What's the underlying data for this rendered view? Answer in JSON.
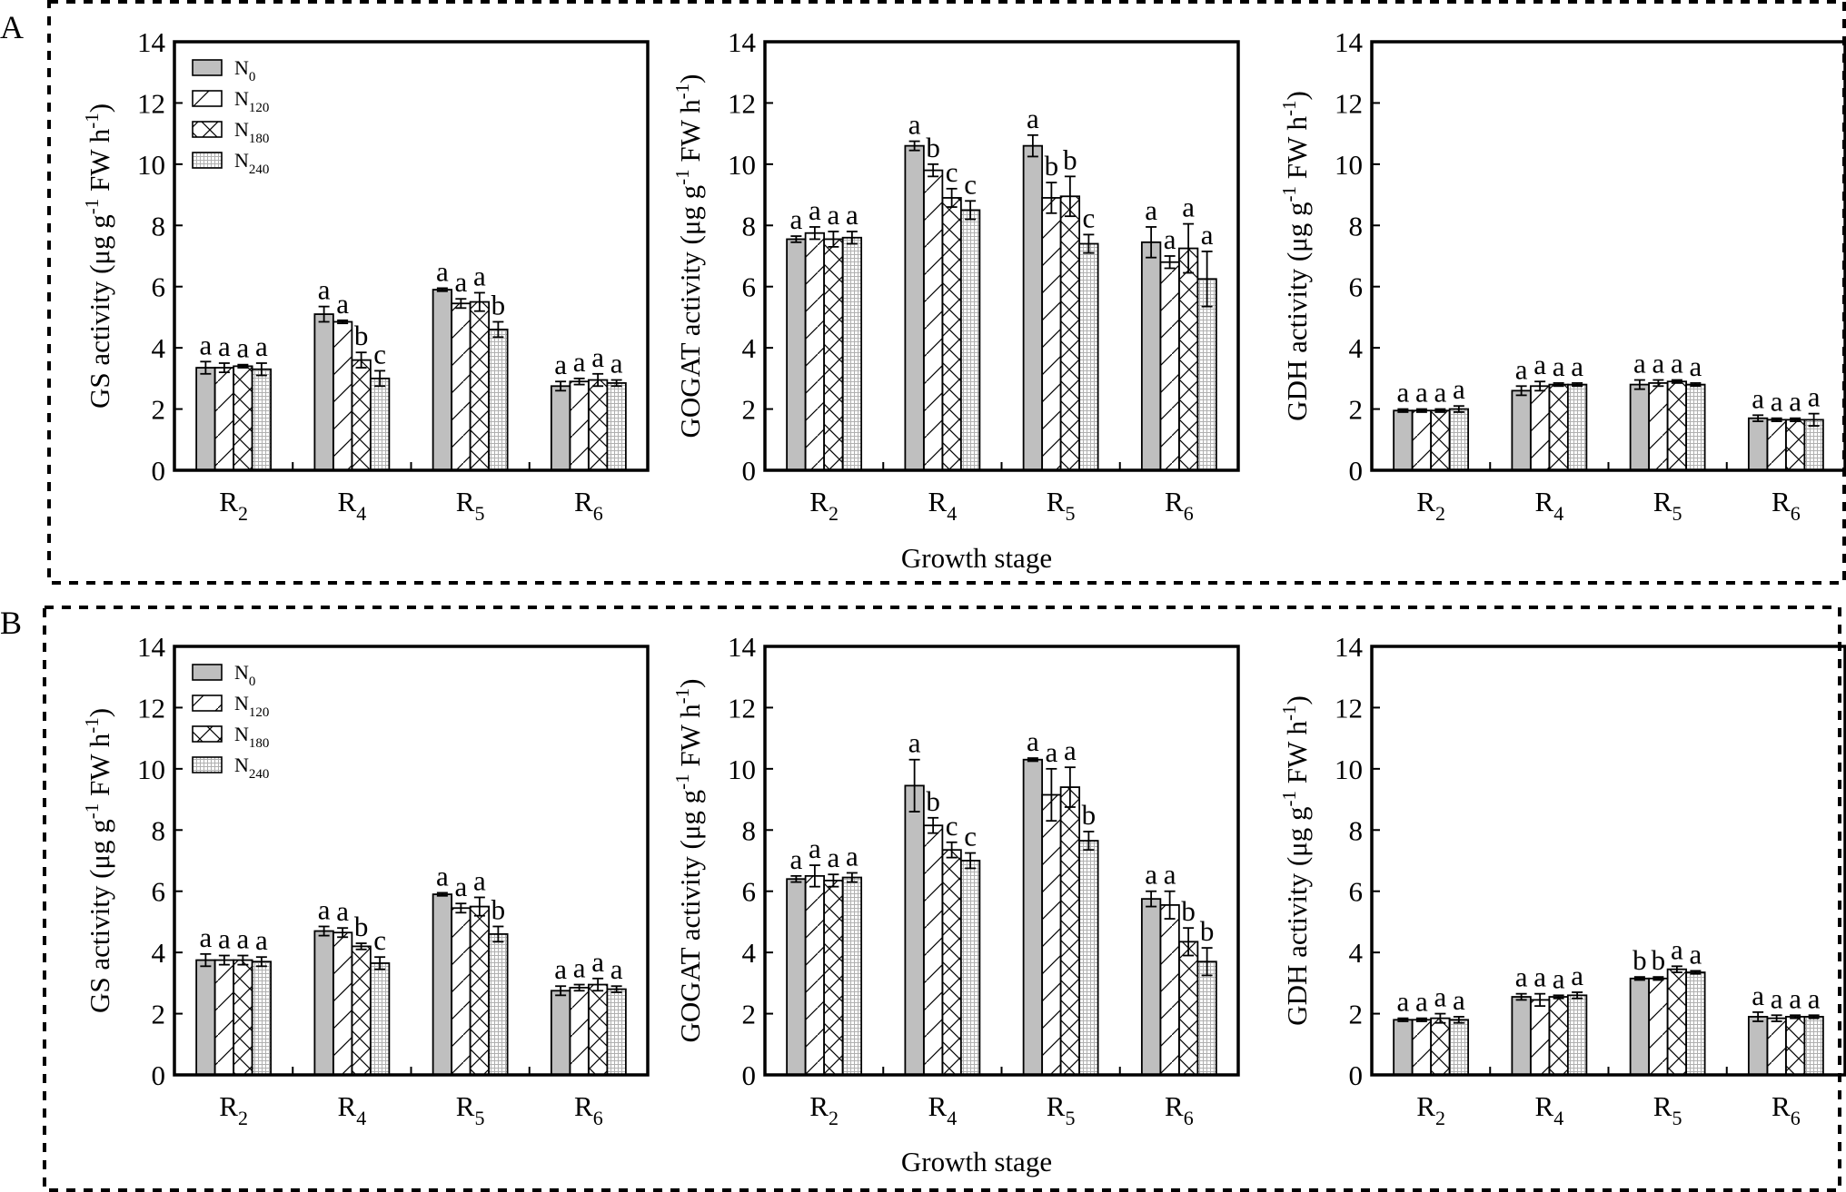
{
  "figure": {
    "x_axis_title": "Growth stage",
    "legend": {
      "entries": [
        {
          "label": "N",
          "sub": "0",
          "pattern": "solid"
        },
        {
          "label": "N",
          "sub": "120",
          "pattern": "diagonal"
        },
        {
          "label": "N",
          "sub": "180",
          "pattern": "cross"
        },
        {
          "label": "N",
          "sub": "240",
          "pattern": "grid"
        }
      ]
    },
    "colors": {
      "bar_fill_n0": "#bfbfbf",
      "outline": "#000000",
      "background": "#ffffff",
      "grid_pattern": "#b0b0b0"
    }
  },
  "chart_data": [
    {
      "panel": "A",
      "type": "bar",
      "ylabel": "GS activity (μg g⁻¹ FW h⁻¹)",
      "ylabel_main": "GS activity (μg g",
      "ylabel_sup1": "-1",
      "ylabel_mid": " FW h",
      "ylabel_sup2": "-1",
      "ylabel_end": ")",
      "ylim": [
        0,
        14
      ],
      "yticks": [
        0,
        2,
        4,
        6,
        8,
        10,
        12,
        14
      ],
      "categories": [
        "R2",
        "R4",
        "R5",
        "R6"
      ],
      "cat_main": [
        "R",
        "R",
        "R",
        "R"
      ],
      "cat_sub": [
        "2",
        "4",
        "5",
        "6"
      ],
      "series": [
        {
          "name": "N0",
          "values": [
            3.35,
            5.1,
            5.9,
            2.75
          ],
          "errors": [
            0.2,
            0.25,
            0.05,
            0.15
          ],
          "letters": [
            "a",
            "a",
            "a",
            "a"
          ]
        },
        {
          "name": "N120",
          "values": [
            3.35,
            4.85,
            5.45,
            2.9
          ],
          "errors": [
            0.15,
            0.05,
            0.15,
            0.1
          ],
          "letters": [
            "a",
            "a",
            "a",
            "a"
          ]
        },
        {
          "name": "N180",
          "values": [
            3.4,
            3.6,
            5.5,
            2.95
          ],
          "errors": [
            0.05,
            0.25,
            0.3,
            0.2
          ],
          "letters": [
            "a",
            "b",
            "a",
            "a"
          ]
        },
        {
          "name": "N240",
          "values": [
            3.3,
            3.0,
            4.6,
            2.85
          ],
          "errors": [
            0.2,
            0.25,
            0.25,
            0.1
          ],
          "letters": [
            "a",
            "c",
            "b",
            "a"
          ]
        }
      ]
    },
    {
      "panel": "A",
      "type": "bar",
      "ylabel": "GOGAT activity (μg g⁻¹ FW h⁻¹)",
      "ylabel_main": "GOGAT activity (μg g",
      "ylabel_sup1": "-1",
      "ylabel_mid": " FW h",
      "ylabel_sup2": "-1",
      "ylabel_end": ")",
      "ylim": [
        0,
        14
      ],
      "yticks": [
        0,
        2,
        4,
        6,
        8,
        10,
        12,
        14
      ],
      "categories": [
        "R2",
        "R4",
        "R5",
        "R6"
      ],
      "cat_main": [
        "R",
        "R",
        "R",
        "R"
      ],
      "cat_sub": [
        "2",
        "4",
        "5",
        "6"
      ],
      "series": [
        {
          "name": "N0",
          "values": [
            7.55,
            10.6,
            10.6,
            7.45
          ],
          "errors": [
            0.1,
            0.15,
            0.35,
            0.5
          ],
          "letters": [
            "a",
            "a",
            "a",
            "a"
          ]
        },
        {
          "name": "N120",
          "values": [
            7.75,
            9.8,
            8.9,
            6.8
          ],
          "errors": [
            0.2,
            0.2,
            0.5,
            0.2
          ],
          "letters": [
            "a",
            "b",
            "b",
            "a"
          ]
        },
        {
          "name": "N180",
          "values": [
            7.55,
            8.9,
            8.95,
            7.25
          ],
          "errors": [
            0.25,
            0.3,
            0.65,
            0.8
          ],
          "letters": [
            "a",
            "c",
            "b",
            "a"
          ]
        },
        {
          "name": "N240",
          "values": [
            7.6,
            8.5,
            7.4,
            6.25
          ],
          "errors": [
            0.2,
            0.3,
            0.3,
            0.9
          ],
          "letters": [
            "a",
            "c",
            "c",
            "a"
          ]
        }
      ]
    },
    {
      "panel": "A",
      "type": "bar",
      "ylabel": "GDH activity (μg g⁻¹ FW h⁻¹)",
      "ylabel_main": "GDH activity (μg g",
      "ylabel_sup1": "-1",
      "ylabel_mid": " FW h",
      "ylabel_sup2": "-1",
      "ylabel_end": ")",
      "ylim": [
        0,
        14
      ],
      "yticks": [
        0,
        2,
        4,
        6,
        8,
        10,
        12,
        14
      ],
      "categories": [
        "R2",
        "R4",
        "R5",
        "R6"
      ],
      "cat_main": [
        "R",
        "R",
        "R",
        "R"
      ],
      "cat_sub": [
        "2",
        "4",
        "5",
        "6"
      ],
      "series": [
        {
          "name": "N0",
          "values": [
            1.95,
            2.6,
            2.8,
            1.7
          ],
          "errors": [
            0.05,
            0.15,
            0.15,
            0.1
          ],
          "letters": [
            "a",
            "a",
            "a",
            "a"
          ]
        },
        {
          "name": "N120",
          "values": [
            1.95,
            2.75,
            2.85,
            1.65
          ],
          "errors": [
            0.05,
            0.15,
            0.1,
            0.05
          ],
          "letters": [
            "a",
            "a",
            "a",
            "a"
          ]
        },
        {
          "name": "N180",
          "values": [
            1.95,
            2.8,
            2.9,
            1.65
          ],
          "errors": [
            0.05,
            0.05,
            0.05,
            0.05
          ],
          "letters": [
            "a",
            "a",
            "a",
            "a"
          ]
        },
        {
          "name": "N240",
          "values": [
            2.0,
            2.8,
            2.8,
            1.65
          ],
          "errors": [
            0.1,
            0.05,
            0.05,
            0.2
          ],
          "letters": [
            "a",
            "a",
            "a",
            "a"
          ]
        }
      ]
    },
    {
      "panel": "B",
      "type": "bar",
      "ylabel": "GS activity (μg g⁻¹ FW h⁻¹)",
      "ylabel_main": "GS activity (μg g",
      "ylabel_sup1": "-1",
      "ylabel_mid": " FW h",
      "ylabel_sup2": "-1",
      "ylabel_end": ")",
      "ylim": [
        0,
        14
      ],
      "yticks": [
        0,
        2,
        4,
        6,
        8,
        10,
        12,
        14
      ],
      "categories": [
        "R2",
        "R4",
        "R5",
        "R6"
      ],
      "cat_main": [
        "R",
        "R",
        "R",
        "R"
      ],
      "cat_sub": [
        "2",
        "4",
        "5",
        "6"
      ],
      "series": [
        {
          "name": "N0",
          "values": [
            3.75,
            4.7,
            5.9,
            2.75
          ],
          "errors": [
            0.2,
            0.15,
            0.05,
            0.15
          ],
          "letters": [
            "a",
            "a",
            "a",
            "a"
          ]
        },
        {
          "name": "N120",
          "values": [
            3.75,
            4.65,
            5.45,
            2.85
          ],
          "errors": [
            0.15,
            0.15,
            0.15,
            0.1
          ],
          "letters": [
            "a",
            "a",
            "a",
            "a"
          ]
        },
        {
          "name": "N180",
          "values": [
            3.75,
            4.2,
            5.5,
            2.95
          ],
          "errors": [
            0.15,
            0.1,
            0.3,
            0.2
          ],
          "letters": [
            "a",
            "b",
            "a",
            "a"
          ]
        },
        {
          "name": "N240",
          "values": [
            3.7,
            3.65,
            4.6,
            2.8
          ],
          "errors": [
            0.15,
            0.2,
            0.25,
            0.1
          ],
          "letters": [
            "a",
            "c",
            "b",
            "a"
          ]
        }
      ]
    },
    {
      "panel": "B",
      "type": "bar",
      "ylabel": "GOGAT activity (μg g⁻¹ FW h⁻¹)",
      "ylabel_main": "GOGAT activity (μg g",
      "ylabel_sup1": "-1",
      "ylabel_mid": " FW h",
      "ylabel_sup2": "-1",
      "ylabel_end": ")",
      "ylim": [
        0,
        14
      ],
      "yticks": [
        0,
        2,
        4,
        6,
        8,
        10,
        12,
        14
      ],
      "categories": [
        "R2",
        "R4",
        "R5",
        "R6"
      ],
      "cat_main": [
        "R",
        "R",
        "R",
        "R"
      ],
      "cat_sub": [
        "2",
        "4",
        "5",
        "6"
      ],
      "series": [
        {
          "name": "N0",
          "values": [
            6.4,
            9.45,
            10.3,
            5.75
          ],
          "errors": [
            0.1,
            0.85,
            0.05,
            0.25
          ],
          "letters": [
            "a",
            "a",
            "a",
            "a"
          ]
        },
        {
          "name": "N120",
          "values": [
            6.5,
            8.15,
            9.15,
            5.55
          ],
          "errors": [
            0.35,
            0.25,
            0.85,
            0.45
          ],
          "letters": [
            "a",
            "b",
            "a",
            "a"
          ]
        },
        {
          "name": "N180",
          "values": [
            6.35,
            7.35,
            9.4,
            4.35
          ],
          "errors": [
            0.2,
            0.25,
            0.65,
            0.45
          ],
          "letters": [
            "a",
            "c",
            "a",
            "b"
          ]
        },
        {
          "name": "N240",
          "values": [
            6.45,
            7.0,
            7.65,
            3.7
          ],
          "errors": [
            0.15,
            0.25,
            0.3,
            0.45
          ],
          "letters": [
            "a",
            "c",
            "b",
            "b"
          ]
        }
      ]
    },
    {
      "panel": "B",
      "type": "bar",
      "ylabel": "GDH activity (μg g⁻¹ FW h⁻¹)",
      "ylabel_main": "GDH activity (μg g",
      "ylabel_sup1": "-1",
      "ylabel_mid": " FW h",
      "ylabel_sup2": "-1",
      "ylabel_end": ")",
      "ylim": [
        0,
        14
      ],
      "yticks": [
        0,
        2,
        4,
        6,
        8,
        10,
        12,
        14
      ],
      "categories": [
        "R2",
        "R4",
        "R5",
        "R6"
      ],
      "cat_main": [
        "R",
        "R",
        "R",
        "R"
      ],
      "cat_sub": [
        "2",
        "4",
        "5",
        "6"
      ],
      "series": [
        {
          "name": "N0",
          "values": [
            1.8,
            2.55,
            3.15,
            1.9
          ],
          "errors": [
            0.05,
            0.1,
            0.05,
            0.15
          ],
          "letters": [
            "a",
            "a",
            "b",
            "a"
          ]
        },
        {
          "name": "N120",
          "values": [
            1.8,
            2.45,
            3.15,
            1.85
          ],
          "errors": [
            0.05,
            0.2,
            0.05,
            0.1
          ],
          "letters": [
            "a",
            "a",
            "b",
            "a"
          ]
        },
        {
          "name": "N180",
          "values": [
            1.85,
            2.55,
            3.45,
            1.9
          ],
          "errors": [
            0.15,
            0.05,
            0.1,
            0.05
          ],
          "letters": [
            "a",
            "a",
            "a",
            "a"
          ]
        },
        {
          "name": "N240",
          "values": [
            1.8,
            2.6,
            3.35,
            1.9
          ],
          "errors": [
            0.1,
            0.1,
            0.05,
            0.05
          ],
          "letters": [
            "a",
            "a",
            "a",
            "a"
          ]
        }
      ]
    }
  ],
  "panels": [
    {
      "label": "A"
    },
    {
      "label": "B"
    }
  ]
}
